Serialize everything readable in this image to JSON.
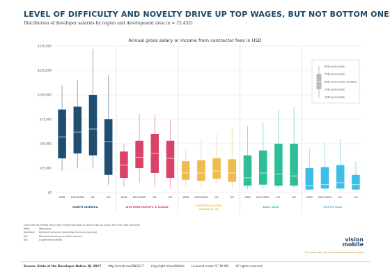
{
  "header": {
    "title": "LEVEL OF DIFFICULTY AND NOVELTY DRIVE UP TOP WAGES, BUT NOT BOTTOM ONES",
    "subtitle": "Distribution of developer salaries by region and development area (n = 15,432)"
  },
  "chart_data": {
    "type": "boxplot",
    "title": "Annual gross salary or income from contractor fees in USD",
    "ylim": [
      0,
      150000
    ],
    "y_ticks": [
      "$0",
      "$25,000",
      "$50,000",
      "$75,000",
      "$100,000",
      "$125,000",
      "$150,000"
    ],
    "grid": true,
    "legend_position": "top-right",
    "legend": [
      "90th percentile",
      "75th percentile",
      "50th percentile (median)",
      "25th percentile",
      "10th percentile"
    ],
    "categories": [
      "WEB",
      "BACKEND",
      "ML",
      "AR"
    ],
    "groups": [
      {
        "name": "NORTH AMERICA",
        "color": "#1f4e70",
        "boxes": [
          {
            "p10": 22000,
            "p25": 35000,
            "median": 57000,
            "p75": 85000,
            "p90": 110000
          },
          {
            "p10": 25000,
            "p25": 40000,
            "median": 62000,
            "p75": 88000,
            "p90": 115000
          },
          {
            "p10": 25000,
            "p25": 38000,
            "median": 65000,
            "p75": 100000,
            "p90": 147000
          },
          {
            "p10": 8000,
            "p25": 18000,
            "median": 52000,
            "p75": 75000,
            "p90": 120000
          }
        ]
      },
      {
        "name": "WESTERN EUROPE & ISRAEL",
        "color": "#d84367",
        "boxes": [
          {
            "p10": 6000,
            "p25": 15000,
            "median": 28000,
            "p75": 42000,
            "p90": 50000
          },
          {
            "p10": 10000,
            "p25": 25000,
            "median": 36000,
            "p75": 53000,
            "p90": 80000
          },
          {
            "p10": 6000,
            "p25": 20000,
            "median": 40000,
            "p75": 60000,
            "p90": 80000
          },
          {
            "p10": 5000,
            "p25": 15000,
            "median": 35000,
            "p75": 53000,
            "p90": 75000
          }
        ]
      },
      {
        "name": "EASTERN EUROPE, RUSSIA & CIS",
        "color": "#eebb4d",
        "boxes": [
          {
            "p10": 6000,
            "p25": 13000,
            "median": 20000,
            "p75": 32000,
            "p90": 45000
          },
          {
            "p10": 5000,
            "p25": 12000,
            "median": 20000,
            "p75": 33000,
            "p90": 55000
          },
          {
            "p10": 8000,
            "p25": 14000,
            "median": 22000,
            "p75": 35000,
            "p90": 60000
          },
          {
            "p10": 5000,
            "p25": 11000,
            "median": 20000,
            "p75": 34000,
            "p90": 66000
          }
        ]
      },
      {
        "name": "EAST ASIA",
        "color": "#2ebd96",
        "boxes": [
          {
            "p10": 3000,
            "p25": 7000,
            "median": 15000,
            "p75": 38000,
            "p90": 68000
          },
          {
            "p10": 4000,
            "p25": 8000,
            "median": 20000,
            "p75": 43000,
            "p90": 72000
          },
          {
            "p10": 4000,
            "p25": 7000,
            "median": 19000,
            "p75": 50000,
            "p90": 85000
          },
          {
            "p10": 4000,
            "p25": 7000,
            "median": 17000,
            "p75": 50000,
            "p90": 88000
          }
        ]
      },
      {
        "name": "SOUTH ASIA",
        "color": "#3dbfe5",
        "boxes": [
          {
            "p10": 2000,
            "p25": 3000,
            "median": 7000,
            "p75": 25000,
            "p90": 45000
          },
          {
            "p10": 2000,
            "p25": 4000,
            "median": 8000,
            "p75": 26000,
            "p90": 52000
          },
          {
            "p10": 2000,
            "p25": 4000,
            "median": 10000,
            "p75": 28000,
            "p90": 55000
          },
          {
            "p10": 2000,
            "p25": 3000,
            "median": 8000,
            "p75": 18000,
            "p90": 32000
          }
        ]
      }
    ]
  },
  "notes": {
    "header": "ONLY DEVELOPERS WHO ARE PROFESSIONALLY INVOLVED IN EACH SECTOR ARE SHOWN",
    "rows": [
      {
        "k": "Web:",
        "v": "Web apps"
      },
      {
        "k": "Backend:",
        "v": "Backend services (including cloud computing)"
      },
      {
        "k": "ML:",
        "v": "Machine learning, AI, data science"
      },
      {
        "k": "AR:",
        "v": "Augmented reality"
      }
    ]
  },
  "brand": {
    "line1": "vision",
    "line2": "mobile"
  },
  "small_note": "This page does not constitute professional advice",
  "footer": {
    "source": "Source: State of the Developer Nation Q1 2017",
    "url": "http://vmob.me/DNQ117",
    "copyright": "Copyright VisionMobile",
    "license": "Licensed under CC BY ND",
    "rights": "All rights reserved"
  }
}
